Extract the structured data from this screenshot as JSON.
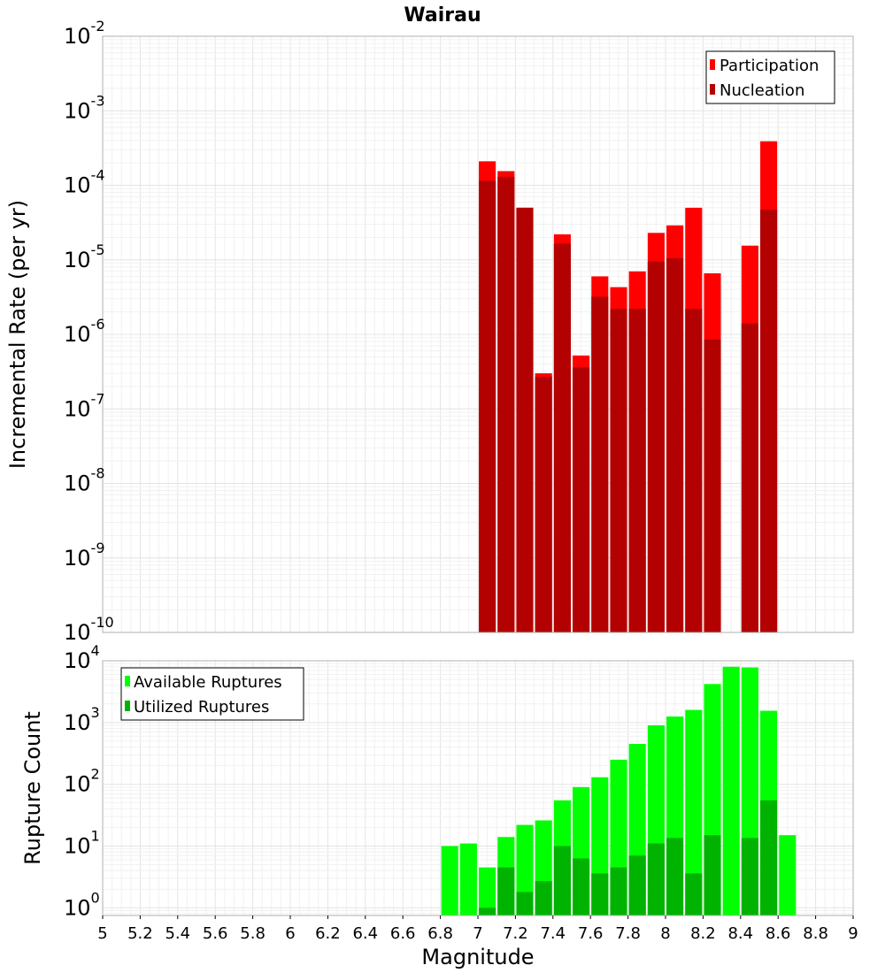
{
  "chart_data": [
    {
      "type": "bar",
      "title": "Wairau",
      "ylabel": "Incremental Rate (per yr)",
      "xlabel": "",
      "xlim": [
        5,
        9
      ],
      "ylim": [
        1e-10,
        0.01
      ],
      "yscale": "log",
      "y_ticks": [
        {
          "base": "10",
          "exp": "-10"
        },
        {
          "base": "10",
          "exp": "-9"
        },
        {
          "base": "10",
          "exp": "-8"
        },
        {
          "base": "10",
          "exp": "-7"
        },
        {
          "base": "10",
          "exp": "-6"
        },
        {
          "base": "10",
          "exp": "-5"
        },
        {
          "base": "10",
          "exp": "-4"
        },
        {
          "base": "10",
          "exp": "-3"
        },
        {
          "base": "10",
          "exp": "-2"
        }
      ],
      "grid": true,
      "legend": "top-right",
      "x": [
        7.05,
        7.15,
        7.25,
        7.35,
        7.45,
        7.55,
        7.65,
        7.75,
        7.85,
        7.95,
        8.05,
        8.15,
        8.25,
        8.35,
        8.45,
        8.55
      ],
      "series": [
        {
          "name": "Participation",
          "color": "#ff0000",
          "values": [
            0.00021,
            0.000155,
            5e-05,
            3e-07,
            2.2e-05,
            5.2e-07,
            6e-06,
            4.3e-06,
            7e-06,
            2.3e-05,
            2.9e-05,
            5e-05,
            6.6e-06,
            null,
            1.55e-05,
            0.00039
          ]
        },
        {
          "name": "Nucleation",
          "color": "#b30000",
          "values": [
            0.000115,
            0.00013,
            5e-05,
            2.7e-07,
            1.65e-05,
            3.6e-07,
            3.2e-06,
            2.2e-06,
            2.2e-06,
            9.5e-06,
            1.05e-05,
            2.2e-06,
            8.5e-07,
            null,
            1.4e-06,
            4.7e-05
          ]
        }
      ]
    },
    {
      "type": "bar",
      "title": "",
      "ylabel": "Rupture Count",
      "xlabel": "Magnitude",
      "xlim": [
        5,
        9
      ],
      "ylim": [
        0.75,
        10000.0
      ],
      "yscale": "log",
      "x_tick_labels": [
        "5",
        "5.2",
        "5.4",
        "5.6",
        "5.8",
        "6",
        "6.2",
        "6.4",
        "6.6",
        "6.8",
        "7",
        "7.2",
        "7.4",
        "7.6",
        "7.8",
        "8",
        "8.2",
        "8.4",
        "8.6",
        "8.8",
        "9"
      ],
      "y_ticks": [
        {
          "base": "10",
          "exp": "0"
        },
        {
          "base": "10",
          "exp": "1"
        },
        {
          "base": "10",
          "exp": "2"
        },
        {
          "base": "10",
          "exp": "3"
        },
        {
          "base": "10",
          "exp": "4"
        }
      ],
      "grid": true,
      "legend": "top-left",
      "x": [
        6.85,
        6.95,
        7.05,
        7.15,
        7.25,
        7.35,
        7.45,
        7.55,
        7.65,
        7.75,
        7.85,
        7.95,
        8.05,
        8.15,
        8.25,
        8.35,
        8.45,
        8.55,
        8.65
      ],
      "series": [
        {
          "name": "Available Ruptures",
          "color": "#00ff00",
          "values": [
            10,
            11,
            4.5,
            14,
            22,
            26,
            55,
            90,
            130,
            250,
            450,
            900,
            1250,
            1600,
            4200,
            8000,
            7800,
            1550,
            15
          ]
        },
        {
          "name": "Utilized Ruptures",
          "color": "#00b300",
          "values": [
            null,
            null,
            1,
            4.5,
            1.8,
            2.7,
            10,
            6.3,
            3.6,
            4.5,
            7,
            11,
            13.5,
            3.6,
            15,
            null,
            13.5,
            55,
            null
          ]
        }
      ]
    }
  ]
}
